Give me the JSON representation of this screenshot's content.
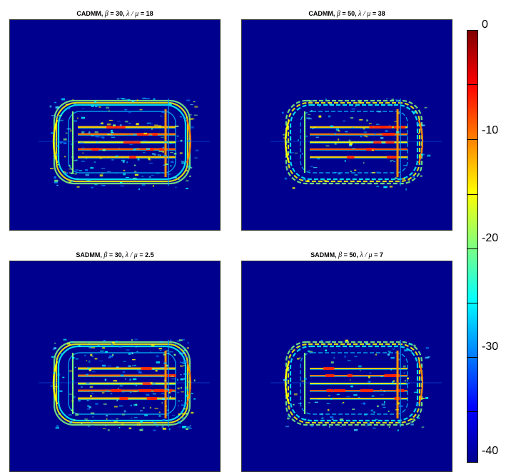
{
  "panels": [
    {
      "title_prefix": "CADMM, ",
      "beta_symbol": "β",
      "beta_value": " = 30, ",
      "ratio_symbol": "λ / μ",
      "ratio_value": " = 18"
    },
    {
      "title_prefix": "CADMM, ",
      "beta_symbol": "β",
      "beta_value": " = 50, ",
      "ratio_symbol": "λ / μ",
      "ratio_value": " = 38"
    },
    {
      "title_prefix": "SADMM, ",
      "beta_symbol": "β",
      "beta_value": " = 30, ",
      "ratio_symbol": "λ / μ",
      "ratio_value": " = 2.5"
    },
    {
      "title_prefix": "SADMM, ",
      "beta_symbol": "β",
      "beta_value": " = 50, ",
      "ratio_symbol": "λ / μ",
      "ratio_value": " = 7"
    }
  ],
  "colorbar": {
    "labels": [
      "0",
      "-10",
      "-20",
      "-30",
      "-40"
    ],
    "min": -41,
    "max": 0,
    "colormap": "jet",
    "colors": {
      "low": "#00008f",
      "high": "#800000"
    }
  }
}
